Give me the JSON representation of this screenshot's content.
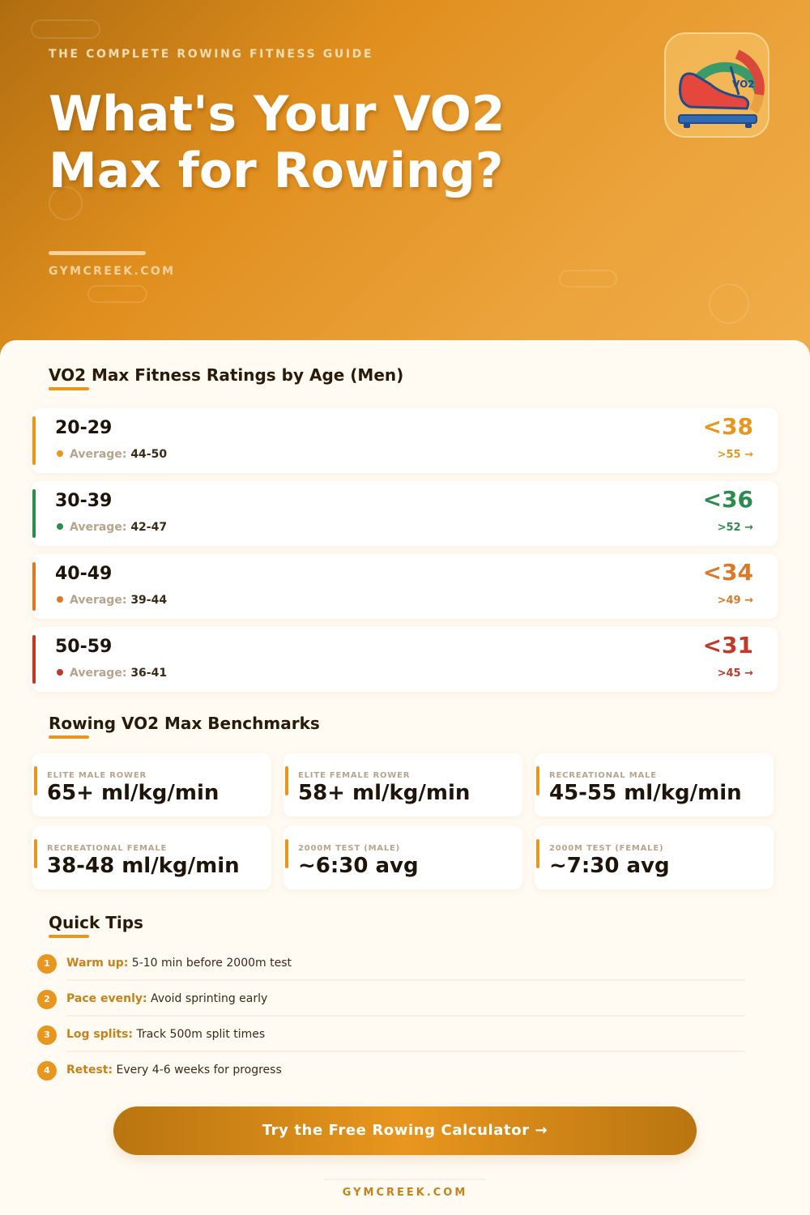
{
  "header": {
    "kicker": "THE COMPLETE ROWING FITNESS GUIDE",
    "title_line1": "What's Your VO2",
    "title_line2": "Max for Rowing?",
    "site": "GYMCREEK.COM",
    "logo_icon": "shoe-on-scale-vo2-gauge-icon",
    "logo_text": "VO2"
  },
  "ratings": {
    "title": "VO2 Max Fitness Ratings by Age (Men)",
    "average_label": "Average:",
    "rows": [
      {
        "age": "20-29",
        "average": "44-50",
        "low": "<38",
        "high": ">55 →",
        "color": "#e8961e"
      },
      {
        "age": "30-39",
        "average": "42-47",
        "low": "<36",
        "high": ">52 →",
        "color": "#2e8b4e"
      },
      {
        "age": "40-49",
        "average": "39-44",
        "low": "<34",
        "high": ">49 →",
        "color": "#d97a2a"
      },
      {
        "age": "50-59",
        "average": "36-41",
        "low": "<31",
        "high": ">45 →",
        "color": "#c0392b"
      }
    ]
  },
  "benchmarks": {
    "title": "Rowing VO2 Max Benchmarks",
    "cards": [
      {
        "label": "ELITE MALE ROWER",
        "value": "65+ ml/kg/min"
      },
      {
        "label": "ELITE FEMALE ROWER",
        "value": "58+ ml/kg/min"
      },
      {
        "label": "RECREATIONAL MALE",
        "value": "45-55 ml/kg/min"
      },
      {
        "label": "RECREATIONAL FEMALE",
        "value": "38-48 ml/kg/min"
      },
      {
        "label": "2000M TEST (MALE)",
        "value": "~6:30 avg"
      },
      {
        "label": "2000M TEST (FEMALE)",
        "value": "~7:30 avg"
      }
    ]
  },
  "tips": {
    "title": "Quick Tips",
    "items": [
      {
        "num": "1",
        "bold": "Warm up:",
        "text": " 5-10 min before 2000m test"
      },
      {
        "num": "2",
        "bold": "Pace evenly:",
        "text": " Avoid sprinting early"
      },
      {
        "num": "3",
        "bold": "Log splits:",
        "text": " Track 500m split times"
      },
      {
        "num": "4",
        "bold": "Retest:",
        "text": " Every 4-6 weeks for progress"
      }
    ]
  },
  "cta": {
    "label": "Try the Free Rowing Calculator →"
  },
  "footer": {
    "site": "GYMCREEK.COM"
  },
  "colors": {
    "accent": "#e8961e",
    "green": "#2e8b4e",
    "dark_orange": "#d97a2a",
    "red": "#c0392b"
  }
}
